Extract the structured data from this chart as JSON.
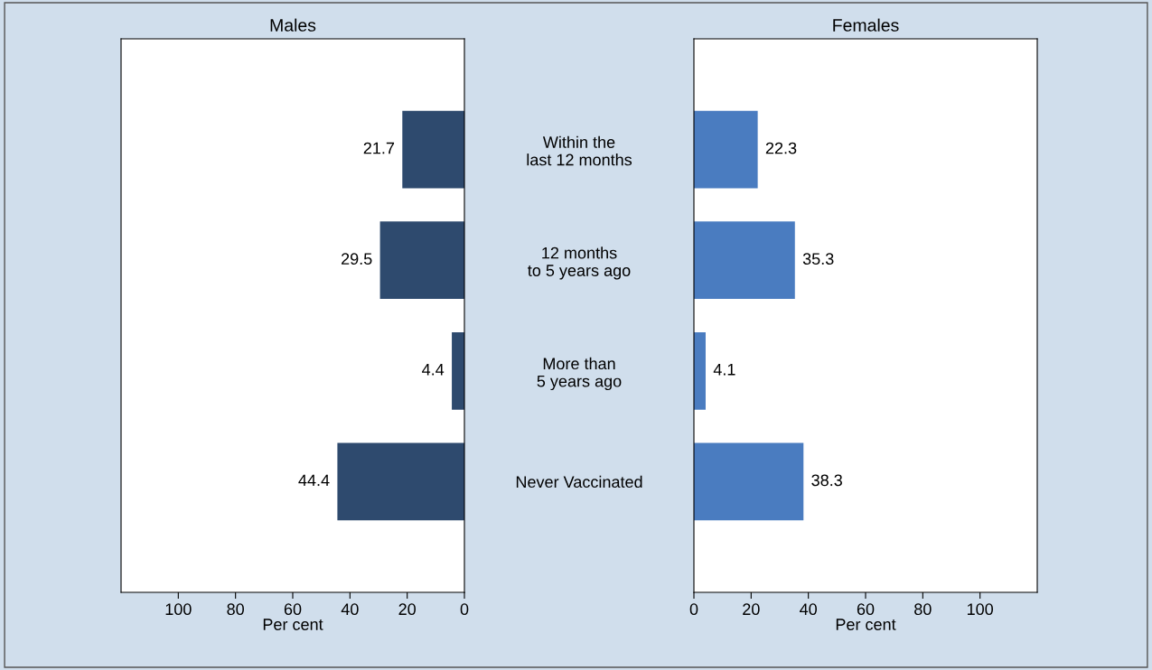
{
  "chart_data": [
    {
      "type": "bar",
      "orientation": "horizontal",
      "title": "Males",
      "xlabel": "Per cent",
      "categories": [
        "Within the\nlast 12 months",
        "12 months\nto 5 years ago",
        "More than\n5 years ago",
        "Never Vaccinated"
      ],
      "values": [
        21.7,
        29.5,
        4.4,
        44.4
      ],
      "color": "#2e4a6e",
      "xlim": [
        120,
        0
      ],
      "xticks": [
        100,
        80,
        60,
        40,
        20,
        0
      ],
      "data_labels": true,
      "grid": false,
      "legend": false
    },
    {
      "type": "bar",
      "orientation": "horizontal",
      "title": "Females",
      "xlabel": "Per cent",
      "categories": [
        null,
        null,
        null,
        null
      ],
      "values": [
        22.3,
        35.3,
        4.1,
        38.3
      ],
      "color": "#4a7cc0",
      "xlim": [
        0,
        120
      ],
      "xticks": [
        0,
        20,
        40,
        60,
        80,
        100
      ],
      "data_labels": true,
      "grid": false,
      "legend": false,
      "tick_labels": "x"
    }
  ]
}
